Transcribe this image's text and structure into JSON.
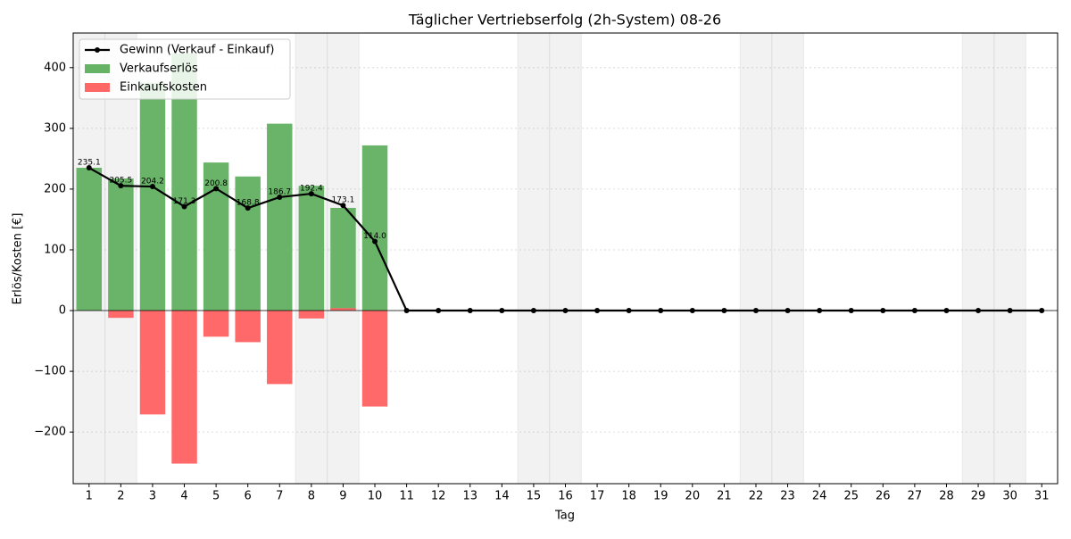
{
  "chart_data": {
    "type": "bar",
    "title": "Täglicher Vertriebserfolg (2h-System) 08-26",
    "xlabel": "Tag",
    "ylabel": "Erlös/Kosten [€]",
    "categories": [
      "1",
      "2",
      "3",
      "4",
      "5",
      "6",
      "7",
      "8",
      "9",
      "10",
      "11",
      "12",
      "13",
      "14",
      "15",
      "16",
      "17",
      "18",
      "19",
      "20",
      "21",
      "22",
      "23",
      "24",
      "25",
      "26",
      "27",
      "28",
      "29",
      "30",
      "31"
    ],
    "shaded_categories": [
      "1",
      "2",
      "8",
      "9",
      "15",
      "16",
      "22",
      "23",
      "29",
      "30"
    ],
    "series": [
      {
        "name": "Gewinn (Verkauf - Einkauf)",
        "type": "line",
        "color": "#000000",
        "values": [
          235.1,
          205.5,
          204.2,
          171.3,
          200.8,
          168.8,
          186.7,
          192.4,
          173.1,
          114,
          0,
          0,
          0,
          0,
          0,
          0,
          0,
          0,
          0,
          0,
          0,
          0,
          0,
          0,
          0,
          0,
          0,
          0,
          0,
          0,
          0
        ],
        "value_labels": [
          "235.1",
          "205.5",
          "204.2",
          "171.3",
          "200.8",
          "168.8",
          "186.7",
          "192.4",
          "173.1",
          "114.0",
          null,
          null,
          null,
          null,
          null,
          null,
          null,
          null,
          null,
          null,
          null,
          null,
          null,
          null,
          null,
          null,
          null,
          null,
          null,
          null,
          null
        ]
      },
      {
        "name": "Verkaufserlös",
        "type": "bar",
        "color": "#66b366",
        "values": [
          235.1,
          217.5,
          375.2,
          423.3,
          243.8,
          220.8,
          307.7,
          205.4,
          169.1,
          272,
          0,
          0,
          0,
          0,
          0,
          0,
          0,
          0,
          0,
          0,
          0,
          0,
          0,
          0,
          0,
          0,
          0,
          0,
          0,
          0,
          0
        ]
      },
      {
        "name": "Einkaufskosten",
        "type": "bar",
        "color": "#ff6666",
        "values": [
          0,
          -12,
          -171,
          -252,
          -43,
          -52,
          -121,
          -13,
          4,
          -158,
          0,
          0,
          0,
          0,
          0,
          0,
          0,
          0,
          0,
          0,
          0,
          0,
          0,
          0,
          0,
          0,
          0,
          0,
          0,
          0,
          0
        ]
      }
    ],
    "ylim": [
      -285,
      457
    ],
    "yticks": [
      {
        "value": -200,
        "label": "−200"
      },
      {
        "value": -100,
        "label": "−100"
      },
      0,
      100,
      200,
      300,
      400
    ],
    "grid": true,
    "legend": "upper left"
  }
}
